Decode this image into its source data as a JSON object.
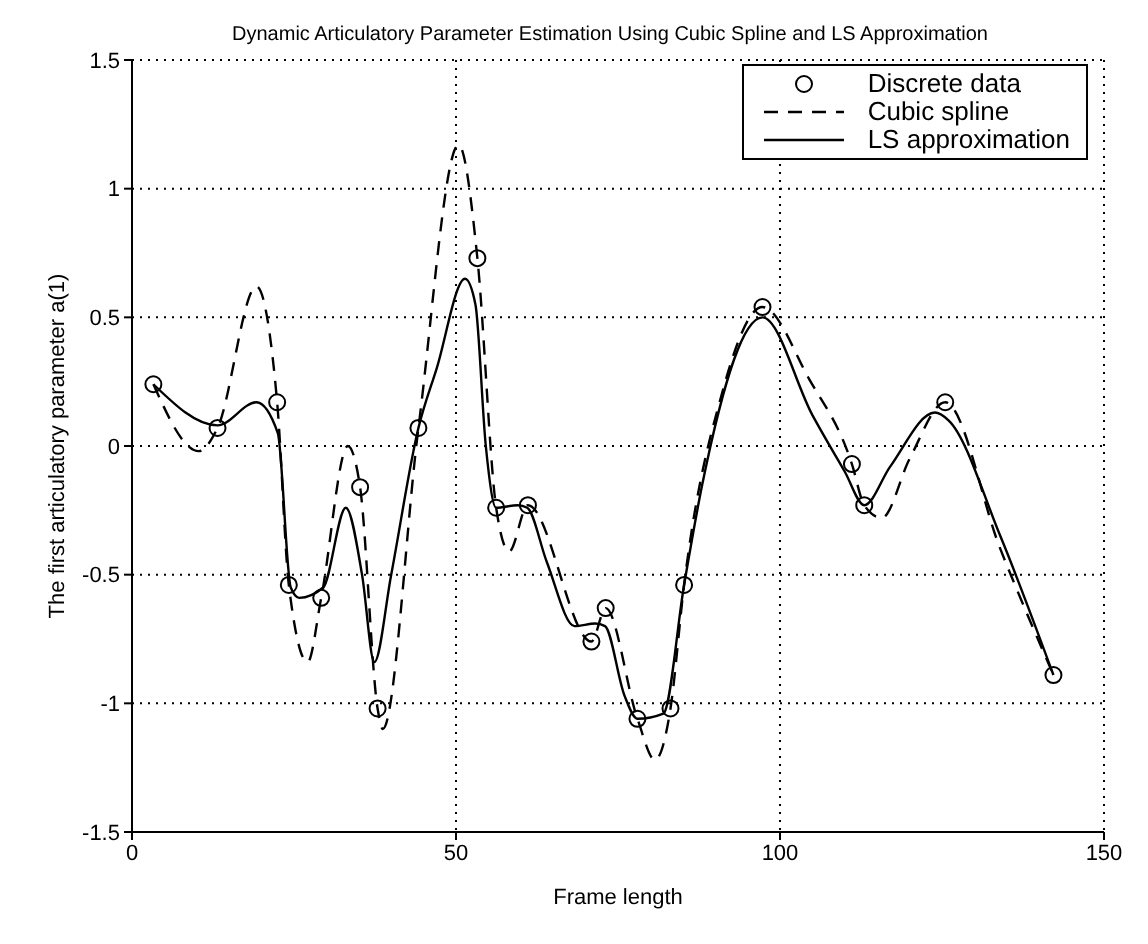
{
  "chart_data": {
    "type": "line",
    "title": "Dynamic Articulatory Parameter Estimation Using Cubic Spline and LS Approximation",
    "xlabel": "Frame length",
    "ylabel": "The first articulatory parameter a(1)",
    "xlim": [
      0,
      150
    ],
    "xticks": [
      0,
      50,
      100,
      150
    ],
    "ylim": [
      -1.5,
      1.5
    ],
    "yticks": [
      -1.5,
      -1,
      -0.5,
      0,
      0.5,
      1,
      1.5
    ],
    "grid": true,
    "legend": "top right",
    "series": [
      {
        "name": "Discrete data",
        "type": "scatter",
        "marker": "circle",
        "color": "#000000",
        "x": [
          3.3,
          13.2,
          22.4,
          24.2,
          29.2,
          35.2,
          37.9,
          44.2,
          53.3,
          56.2,
          61.1,
          70.9,
          73.1,
          78,
          83.1,
          85.2,
          97.3,
          111.1,
          113,
          125.5,
          142.2
        ],
        "values": [
          0.24,
          0.07,
          0.17,
          -0.54,
          -0.59,
          -0.16,
          -1.02,
          0.07,
          0.73,
          -0.24,
          -0.23,
          -0.76,
          -0.63,
          -1.06,
          -1.02,
          -0.54,
          0.54,
          -0.07,
          -0.23,
          0.17,
          -0.89
        ]
      },
      {
        "name": "Cubic spline",
        "type": "line",
        "line_style": "dashed",
        "marker": "none",
        "color": "#000000",
        "x": [
          3.3,
          10.3,
          13.2,
          19.2,
          22.4,
          24.2,
          27.1,
          29.2,
          33.3,
          35.2,
          37.9,
          38.7,
          44.2,
          50.4,
          53.3,
          56.2,
          58.2,
          61.1,
          70.9,
          73.1,
          78,
          80.7,
          83.1,
          85.2,
          91,
          97.3,
          104.5,
          111.1,
          113,
          115.7,
          120,
          125.5,
          134,
          142.2
        ],
        "values": [
          0.24,
          -0.02,
          0.07,
          0.62,
          0.17,
          -0.54,
          -0.84,
          -0.59,
          0,
          -0.16,
          -1.02,
          -1.1,
          0.07,
          1.17,
          0.73,
          -0.24,
          -0.41,
          -0.23,
          -0.76,
          -0.63,
          -1.06,
          -1.22,
          -1.02,
          -0.54,
          0.2,
          0.54,
          0.26,
          -0.07,
          -0.23,
          -0.28,
          -0.05,
          0.17,
          -0.4,
          -0.89
        ]
      },
      {
        "name": "LS approximation",
        "type": "line",
        "line_style": "solid",
        "marker": "none",
        "color": "#000000",
        "x": [
          3.3,
          13.2,
          19.2,
          22.5,
          24.5,
          25.8,
          29.5,
          33,
          35.5,
          37.4,
          40,
          44.2,
          47,
          51.4,
          53,
          54.6,
          56.2,
          59.5,
          61,
          64,
          68.3,
          71.5,
          73,
          76,
          78,
          82,
          85.2,
          88,
          97.3,
          105,
          110,
          113,
          117,
          123.9,
          126,
          134,
          142.2
        ],
        "values": [
          0.24,
          0.08,
          0.17,
          0.05,
          -0.55,
          -0.59,
          -0.55,
          -0.24,
          -0.5,
          -0.84,
          -0.5,
          0.07,
          0.3,
          0.65,
          0.55,
          0,
          -0.24,
          -0.23,
          -0.24,
          -0.45,
          -0.7,
          -0.69,
          -0.7,
          -0.97,
          -1.06,
          -1.04,
          -0.54,
          -0.15,
          0.5,
          0.12,
          -0.1,
          -0.23,
          -0.08,
          0.13,
          0.1,
          -0.35,
          -0.89
        ]
      }
    ]
  }
}
